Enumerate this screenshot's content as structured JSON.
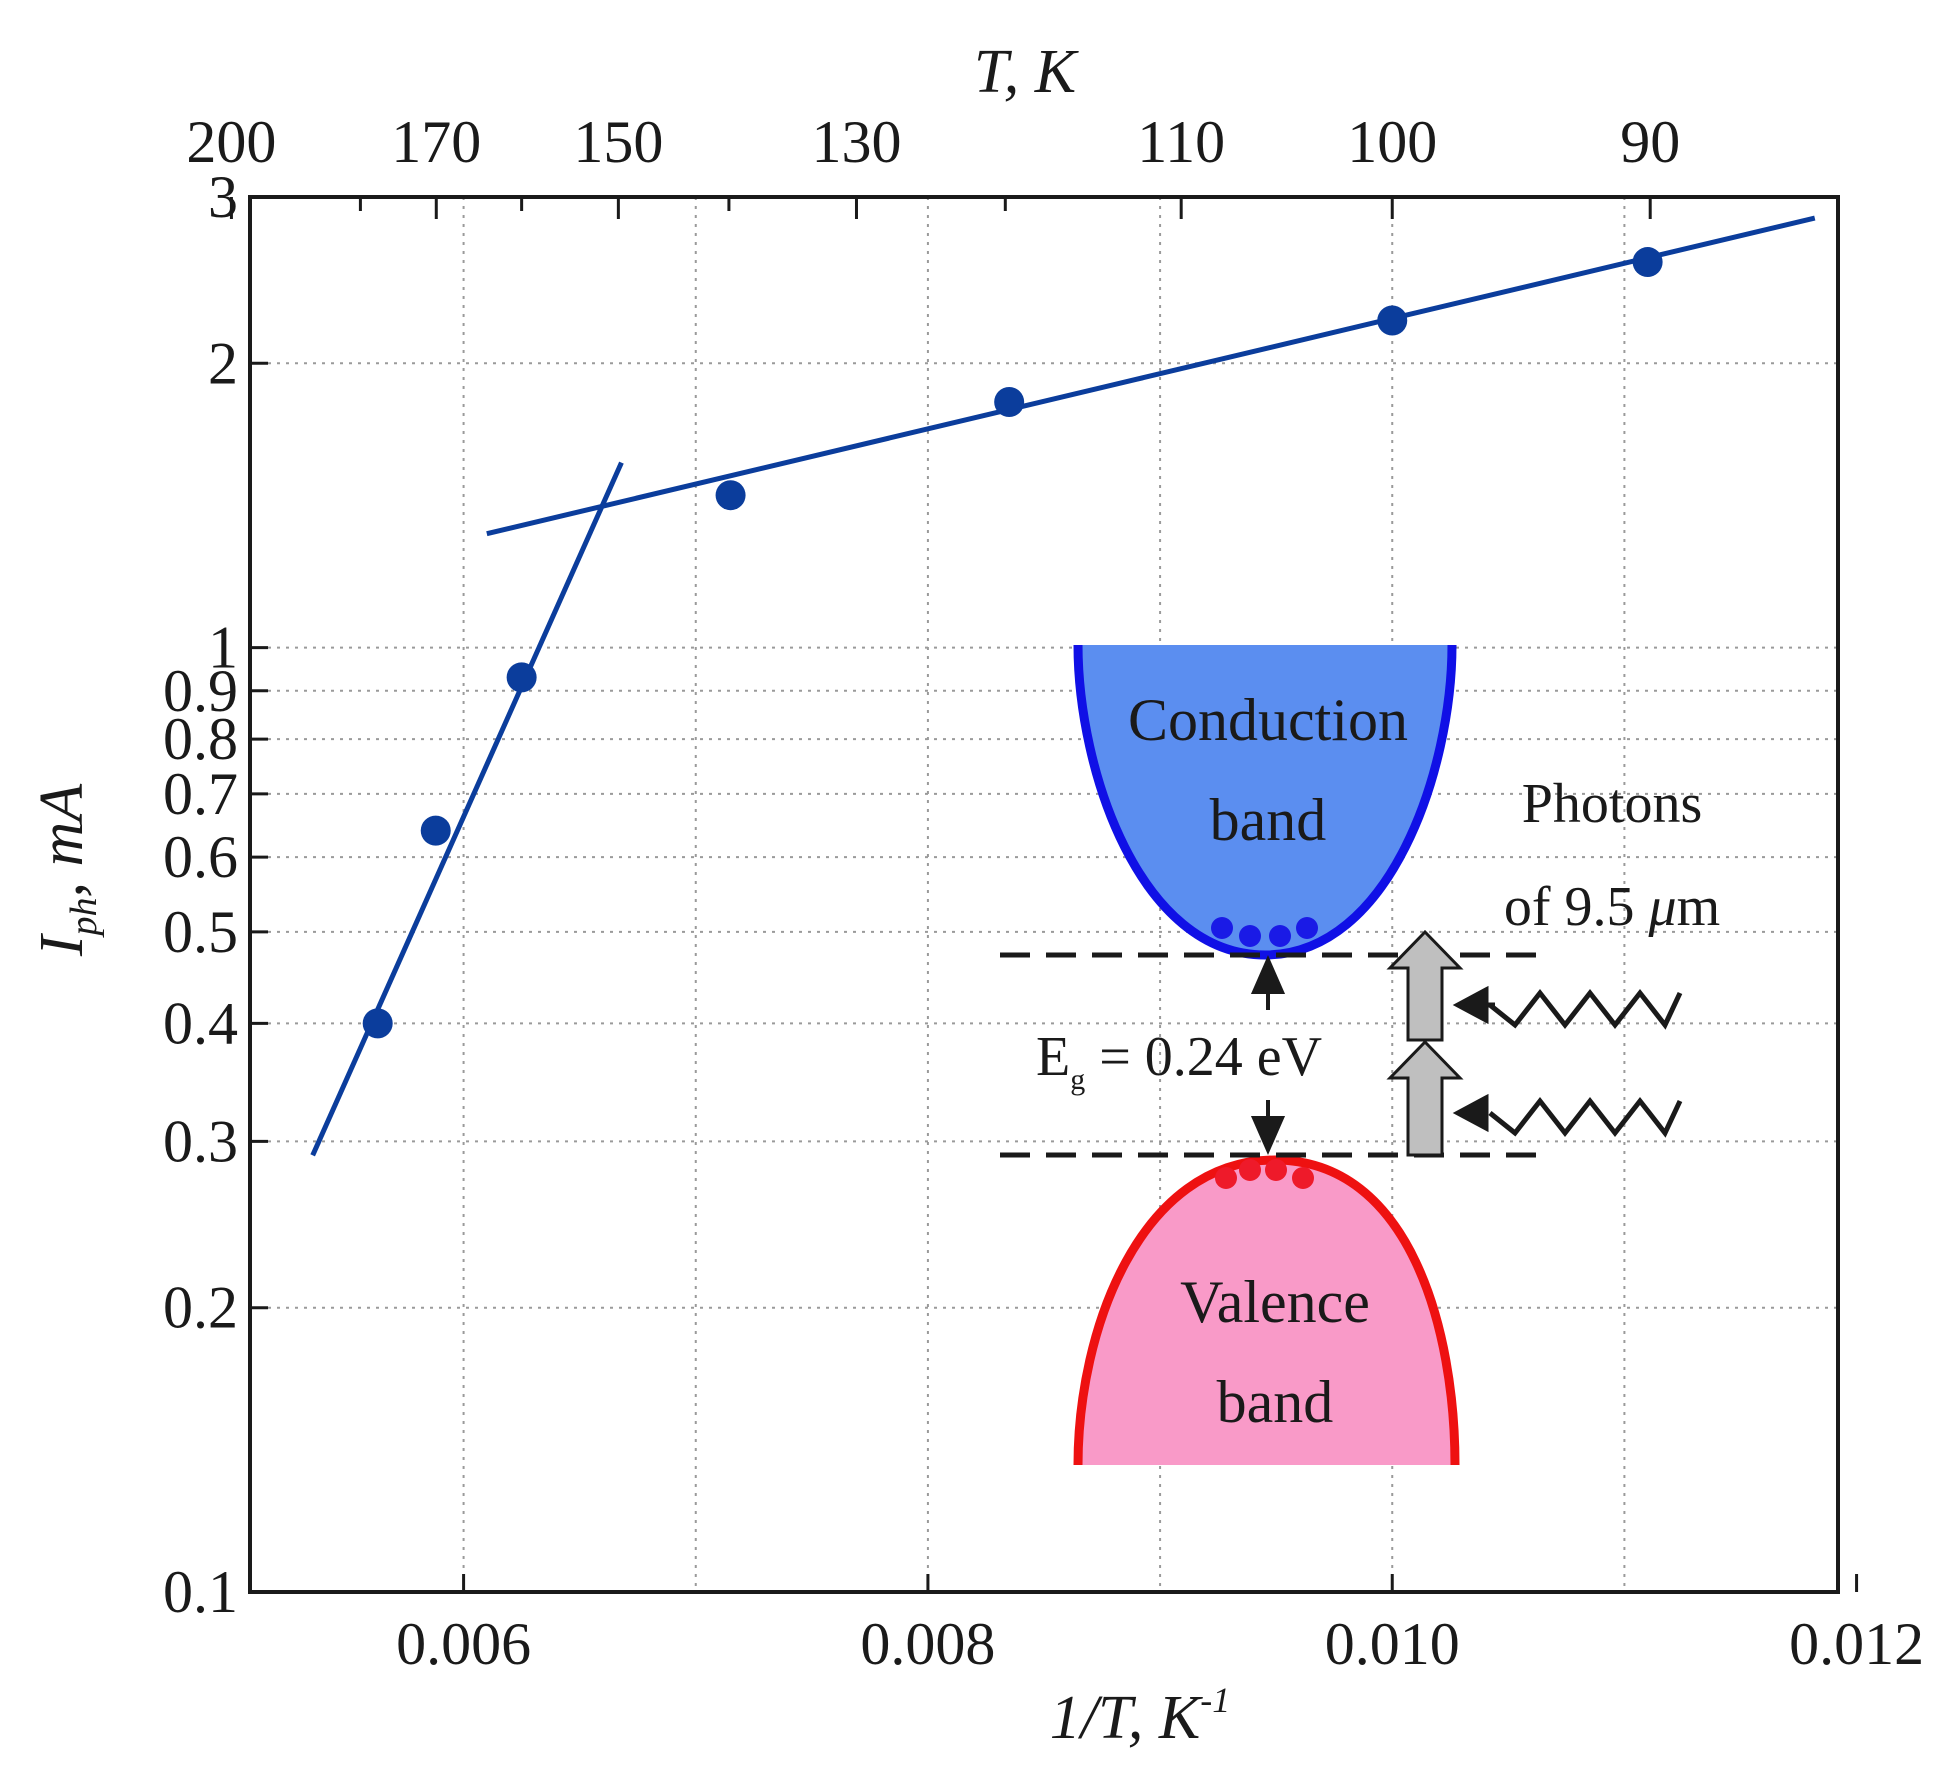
{
  "chart_data": {
    "type": "scatter",
    "x_axis": {
      "label_main": "1/T, K",
      "label_sup": "-1",
      "range": [
        0.00508,
        0.01192
      ],
      "ticks": [
        0.006,
        0.008,
        0.01,
        0.012
      ],
      "tick_labels": [
        "0.006",
        "0.008",
        "0.010",
        "0.012"
      ],
      "minor_grid": [
        0.007,
        0.009,
        0.011
      ]
    },
    "top_axis": {
      "label": "T, K",
      "ticks": [
        200,
        170,
        150,
        130,
        110,
        100,
        90
      ],
      "tick_labels": [
        "200",
        "170",
        "150",
        "130",
        "110",
        "100",
        "90"
      ],
      "tick_marks": [
        180,
        160,
        140,
        120
      ]
    },
    "y_axis": {
      "label_main": "I",
      "label_sub": "ph",
      "label_rest": ", mA",
      "scale": "log",
      "range": [
        0.1,
        3.0
      ],
      "ticks": [
        0.1,
        0.2,
        0.3,
        0.4,
        0.5,
        0.6,
        0.7,
        0.8,
        0.9,
        1,
        2,
        3
      ],
      "tick_labels": [
        "0.1",
        "0.2",
        "0.3",
        "0.4",
        "0.5",
        "0.6",
        "0.7",
        "0.8",
        "0.9",
        "1",
        "2",
        "3"
      ]
    },
    "grid": true,
    "series": [
      {
        "color": "#0b3d9c",
        "points": [
          {
            "x": 0.00563,
            "y": 0.4
          },
          {
            "x": 0.00588,
            "y": 0.64
          },
          {
            "x": 0.00625,
            "y": 0.93
          },
          {
            "x": 0.00715,
            "y": 1.45
          },
          {
            "x": 0.00835,
            "y": 1.82
          },
          {
            "x": 0.01,
            "y": 2.22
          },
          {
            "x": 0.0111,
            "y": 2.56
          }
        ]
      }
    ],
    "fit_lines": [
      {
        "color": "#0b3d9c",
        "x": [
          0.00535,
          0.00668
        ],
        "y": [
          0.29,
          1.57
        ]
      },
      {
        "color": "#0b3d9c",
        "x": [
          0.0061,
          0.01182
        ],
        "y": [
          1.32,
          2.85
        ]
      }
    ]
  },
  "inset": {
    "conduction_label_1": "Conduction",
    "conduction_label_2": "band",
    "valence_label_1": "Valence",
    "valence_label_2": "band",
    "photons_label_1": "Photons",
    "photons_label_2": "of 9.5 ",
    "photons_unit_mu": "μ",
    "photons_unit_m": "m",
    "gap_label_E": "E",
    "gap_label_sub": "g",
    "gap_label_rest": " = 0.24 eV",
    "conduction_color": "#5b8ef0",
    "conduction_edge": "#1010e6",
    "valence_color": "#f99ac8",
    "valence_edge": "#ee1111",
    "electron_color": "#1a1ae6",
    "hole_color": "#ee1a2a",
    "arrow_color": "#bfbfbf"
  }
}
